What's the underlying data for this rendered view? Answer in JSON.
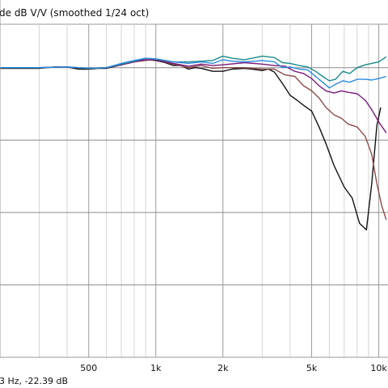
{
  "chart_data": {
    "type": "line",
    "title": "de dB V/V (smoothed 1/24 oct)",
    "x_scale": "log",
    "xlim": [
      200,
      11000
    ],
    "ylim": [
      -40,
      6
    ],
    "x_ticks": [
      {
        "value": 500,
        "label": "500"
      },
      {
        "value": 1000,
        "label": "1k"
      },
      {
        "value": 2000,
        "label": "2k"
      },
      {
        "value": 5000,
        "label": "5k"
      },
      {
        "value": 10000,
        "label": "10k"
      }
    ],
    "minor_x_gridlines": [
      300,
      400,
      600,
      700,
      800,
      900,
      3000,
      4000,
      6000,
      7000,
      8000,
      9000
    ],
    "y_gridlines": [
      0,
      -10,
      -20,
      -30
    ],
    "grid": true,
    "cursor_readout": "3 Hz, -22.39 dB",
    "series": [
      {
        "color": "#111111",
        "points": [
          [
            200,
            -0.1
          ],
          [
            300,
            -0.1
          ],
          [
            350,
            0.1
          ],
          [
            400,
            0.1
          ],
          [
            450,
            -0.2
          ],
          [
            500,
            -0.2
          ],
          [
            550,
            -0.1
          ],
          [
            600,
            -0.1
          ],
          [
            700,
            0.4
          ],
          [
            800,
            0.9
          ],
          [
            900,
            1.1
          ],
          [
            1000,
            1.0
          ],
          [
            1100,
            0.7
          ],
          [
            1200,
            0.3
          ],
          [
            1300,
            0.3
          ],
          [
            1400,
            -0.2
          ],
          [
            1500,
            0.0
          ],
          [
            1600,
            -0.1
          ],
          [
            1800,
            -0.5
          ],
          [
            2000,
            -0.5
          ],
          [
            2200,
            -0.2
          ],
          [
            2500,
            -0.1
          ],
          [
            2700,
            -0.2
          ],
          [
            3000,
            -0.4
          ],
          [
            3200,
            -0.2
          ],
          [
            3400,
            -0.6
          ],
          [
            3700,
            -2.2
          ],
          [
            4000,
            -3.8
          ],
          [
            4300,
            -4.5
          ],
          [
            4600,
            -5.2
          ],
          [
            5000,
            -6.0
          ],
          [
            5400,
            -8.2
          ],
          [
            5800,
            -10.5
          ],
          [
            6300,
            -13.5
          ],
          [
            7000,
            -16.5
          ],
          [
            7600,
            -18.0
          ],
          [
            8200,
            -21.5
          ],
          [
            8800,
            -22.4
          ],
          [
            9300,
            -16.0
          ],
          [
            9800,
            -8.0
          ],
          [
            10200,
            -5.5
          ]
        ]
      },
      {
        "color": "#8b4a4a",
        "points": [
          [
            200,
            0.0
          ],
          [
            300,
            0.0
          ],
          [
            400,
            0.1
          ],
          [
            500,
            -0.1
          ],
          [
            600,
            0.0
          ],
          [
            700,
            0.4
          ],
          [
            800,
            0.8
          ],
          [
            900,
            1.0
          ],
          [
            1000,
            1.1
          ],
          [
            1200,
            0.5
          ],
          [
            1400,
            0.0
          ],
          [
            1600,
            0.3
          ],
          [
            1800,
            -0.1
          ],
          [
            2000,
            0.0
          ],
          [
            2500,
            0.0
          ],
          [
            3000,
            -0.2
          ],
          [
            3400,
            -0.2
          ],
          [
            3800,
            -1.0
          ],
          [
            4200,
            -1.2
          ],
          [
            4600,
            -2.5
          ],
          [
            5000,
            -3.2
          ],
          [
            5400,
            -4.2
          ],
          [
            5800,
            -5.5
          ],
          [
            6300,
            -6.5
          ],
          [
            6800,
            -7.0
          ],
          [
            7300,
            -7.8
          ],
          [
            8000,
            -8.2
          ],
          [
            8700,
            -9.5
          ],
          [
            9300,
            -12.0
          ],
          [
            9800,
            -16.0
          ],
          [
            10300,
            -19.0
          ],
          [
            10800,
            -21.0
          ]
        ]
      },
      {
        "color": "#7a1a7a",
        "points": [
          [
            200,
            0.0
          ],
          [
            300,
            0.0
          ],
          [
            400,
            0.1
          ],
          [
            500,
            -0.1
          ],
          [
            600,
            0.0
          ],
          [
            700,
            0.4
          ],
          [
            800,
            0.8
          ],
          [
            900,
            1.1
          ],
          [
            1000,
            1.1
          ],
          [
            1200,
            0.6
          ],
          [
            1400,
            0.2
          ],
          [
            1600,
            0.5
          ],
          [
            1800,
            0.3
          ],
          [
            2000,
            0.4
          ],
          [
            2500,
            0.7
          ],
          [
            3000,
            0.5
          ],
          [
            3400,
            0.3
          ],
          [
            3800,
            0.2
          ],
          [
            4200,
            -0.5
          ],
          [
            4600,
            -0.8
          ],
          [
            5000,
            -1.5
          ],
          [
            5400,
            -2.5
          ],
          [
            5800,
            -3.2
          ],
          [
            6300,
            -3.5
          ],
          [
            6800,
            -3.2
          ],
          [
            7300,
            -3.4
          ],
          [
            8000,
            -3.6
          ],
          [
            8700,
            -4.5
          ],
          [
            9300,
            -5.8
          ],
          [
            10000,
            -7.5
          ],
          [
            10800,
            -9.0
          ]
        ]
      },
      {
        "color": "#1a8a8a",
        "points": [
          [
            200,
            0.0
          ],
          [
            300,
            0.0
          ],
          [
            400,
            0.1
          ],
          [
            500,
            -0.1
          ],
          [
            600,
            0.0
          ],
          [
            700,
            0.5
          ],
          [
            800,
            0.9
          ],
          [
            900,
            1.3
          ],
          [
            1000,
            1.2
          ],
          [
            1200,
            0.8
          ],
          [
            1400,
            0.8
          ],
          [
            1600,
            0.9
          ],
          [
            1800,
            1.0
          ],
          [
            2000,
            1.6
          ],
          [
            2200,
            1.3
          ],
          [
            2500,
            1.1
          ],
          [
            2800,
            1.4
          ],
          [
            3000,
            1.6
          ],
          [
            3200,
            1.5
          ],
          [
            3400,
            1.4
          ],
          [
            3700,
            0.7
          ],
          [
            4000,
            0.6
          ],
          [
            4400,
            0.3
          ],
          [
            4800,
            0.1
          ],
          [
            5200,
            -0.5
          ],
          [
            5600,
            -1.2
          ],
          [
            6000,
            -1.8
          ],
          [
            6400,
            -1.6
          ],
          [
            6900,
            -0.5
          ],
          [
            7400,
            -0.8
          ],
          [
            8000,
            0.0
          ],
          [
            8700,
            0.4
          ],
          [
            9300,
            0.6
          ],
          [
            10000,
            0.8
          ],
          [
            10800,
            1.5
          ]
        ]
      },
      {
        "color": "#2a8ae0",
        "points": [
          [
            200,
            0.0
          ],
          [
            300,
            0.0
          ],
          [
            400,
            0.1
          ],
          [
            500,
            -0.1
          ],
          [
            600,
            0.0
          ],
          [
            700,
            0.6
          ],
          [
            800,
            1.0
          ],
          [
            900,
            1.3
          ],
          [
            1000,
            1.2
          ],
          [
            1200,
            0.8
          ],
          [
            1400,
            0.6
          ],
          [
            1600,
            0.8
          ],
          [
            1800,
            0.6
          ],
          [
            2000,
            1.1
          ],
          [
            2200,
            0.9
          ],
          [
            2500,
            0.8
          ],
          [
            2800,
            0.9
          ],
          [
            3000,
            1.0
          ],
          [
            3200,
            0.9
          ],
          [
            3400,
            0.8
          ],
          [
            3700,
            0.0
          ],
          [
            4000,
            0.1
          ],
          [
            4400,
            -0.2
          ],
          [
            4800,
            -0.3
          ],
          [
            5200,
            -1.2
          ],
          [
            5600,
            -2.0
          ],
          [
            6000,
            -2.8
          ],
          [
            6400,
            -2.3
          ],
          [
            6900,
            -1.8
          ],
          [
            7400,
            -2.0
          ],
          [
            8000,
            -1.6
          ],
          [
            8700,
            -1.6
          ],
          [
            9300,
            -1.7
          ],
          [
            10000,
            -1.5
          ],
          [
            10800,
            -1.2
          ]
        ]
      }
    ]
  }
}
